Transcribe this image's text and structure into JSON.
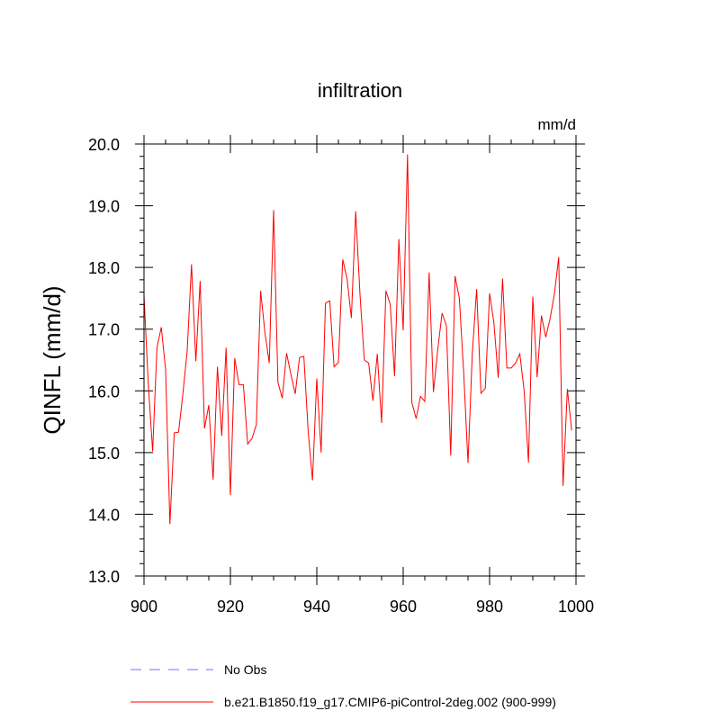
{
  "chart_data": {
    "type": "line",
    "title": "infiltration",
    "units_label": "mm/d",
    "ylabel": "QINFL  (mm/d)",
    "xlabel": "",
    "xlim": [
      900,
      1000
    ],
    "ylim": [
      13.0,
      20.0
    ],
    "x_ticks": [
      900,
      920,
      940,
      960,
      980,
      1000
    ],
    "x_tick_labels": [
      "900",
      "920",
      "940",
      "960",
      "980",
      "1000"
    ],
    "y_ticks": [
      13.0,
      14.0,
      15.0,
      16.0,
      17.0,
      18.0,
      19.0,
      20.0
    ],
    "y_tick_labels": [
      "13.0",
      "14.0",
      "15.0",
      "16.0",
      "17.0",
      "18.0",
      "19.0",
      "20.0"
    ],
    "series": [
      {
        "name": "b.e21.B1850.f19_g17.CMIP6-piControl-2deg.002 (900-999)",
        "color": "#ff0000",
        "x_start": 900,
        "values": [
          17.55,
          16.1,
          15.02,
          16.7,
          17.03,
          16.35,
          13.84,
          15.32,
          15.33,
          15.95,
          16.65,
          18.05,
          16.48,
          17.78,
          15.39,
          15.77,
          14.56,
          16.39,
          15.27,
          16.7,
          14.31,
          16.53,
          16.1,
          16.1,
          15.14,
          15.23,
          15.45,
          17.62,
          16.94,
          16.45,
          18.93,
          16.14,
          15.88,
          16.61,
          16.27,
          15.95,
          16.54,
          16.56,
          15.35,
          14.55,
          16.2,
          15.0,
          17.42,
          17.46,
          16.39,
          16.46,
          18.13,
          17.82,
          17.18,
          18.91,
          17.56,
          16.5,
          16.45,
          15.84,
          16.6,
          15.48,
          17.62,
          17.4,
          16.24,
          18.46,
          16.98,
          19.83,
          15.81,
          15.55,
          15.91,
          15.83,
          17.92,
          15.98,
          16.67,
          17.26,
          17.06,
          14.95,
          17.86,
          17.5,
          16.3,
          14.83,
          16.61,
          17.65,
          15.96,
          16.04,
          17.58,
          17.1,
          16.21,
          17.82,
          16.37,
          16.37,
          16.45,
          16.6,
          16.0,
          14.84,
          17.53,
          16.22,
          17.22,
          16.87,
          17.17,
          17.57,
          18.17,
          14.46,
          16.03,
          15.36
        ]
      },
      {
        "name": "No Obs",
        "color": "#7070ff",
        "values": []
      }
    ],
    "legend": [
      {
        "label": "No Obs",
        "style": "dashed",
        "color": "#7070ff"
      },
      {
        "label": "b.e21.B1850.f19_g17.CMIP6-piControl-2deg.002 (900-999)",
        "style": "solid",
        "color": "#ff0000"
      }
    ],
    "legend_position": "bottom-left",
    "grid": false
  }
}
